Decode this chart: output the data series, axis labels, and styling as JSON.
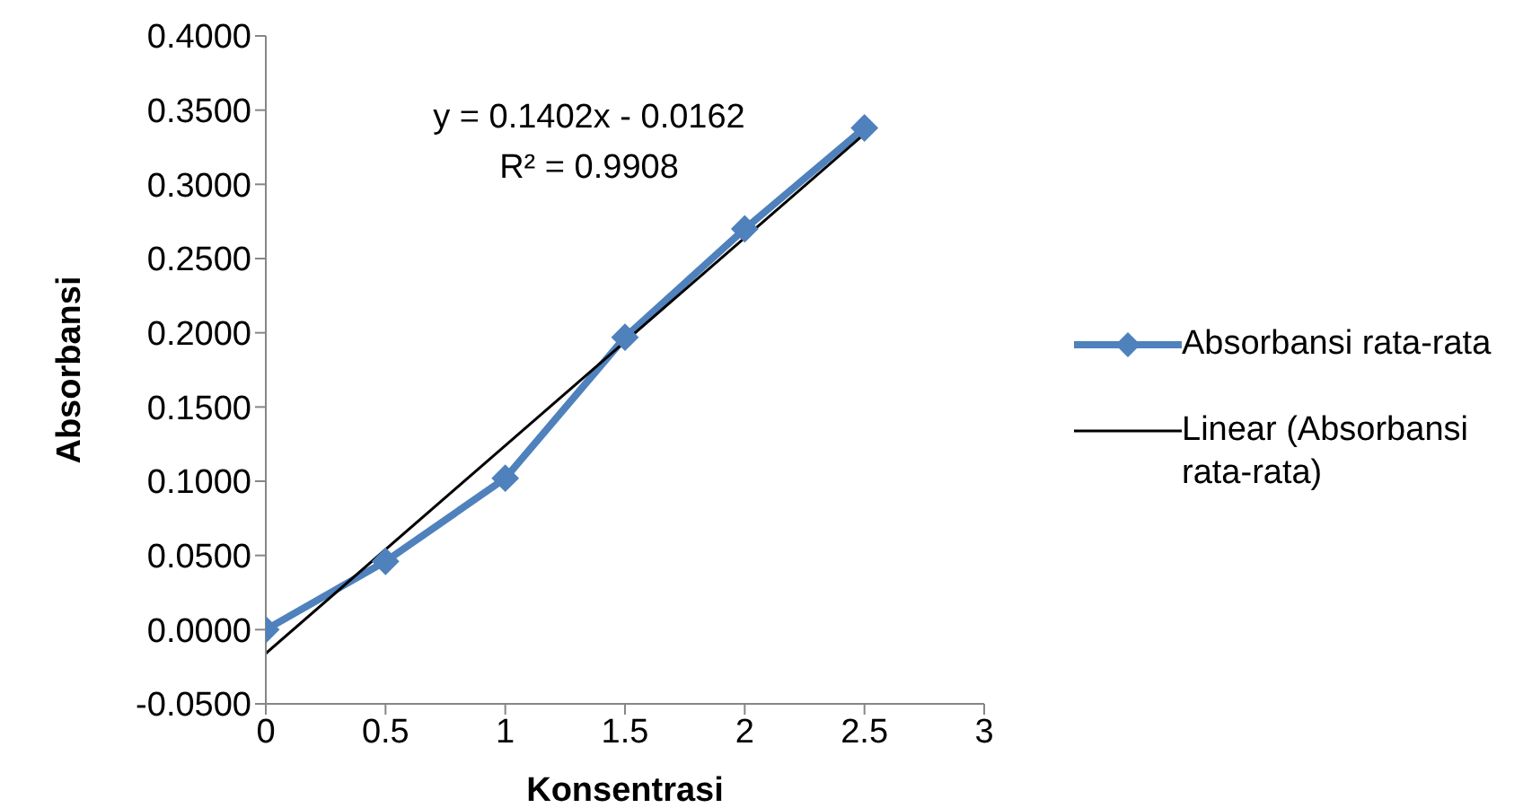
{
  "chart_data": {
    "type": "line",
    "xlabel": "Konsentrasi",
    "ylabel": "Absorbansi",
    "x": [
      0,
      0.5,
      1,
      1.5,
      2,
      2.5
    ],
    "series": [
      {
        "name": "Absorbansi rata-rata",
        "color": "#4f81bd",
        "values": [
          0.0,
          0.046,
          0.102,
          0.197,
          0.27,
          0.338
        ]
      },
      {
        "name": "Linear (Absorbansi rata-rata)",
        "color": "#000000",
        "x": [
          0,
          2.5
        ],
        "values": [
          -0.016,
          0.334
        ],
        "marker": "none"
      }
    ],
    "marker": "diamond",
    "line_style": "solid",
    "grid": false,
    "legend": "right",
    "xlim": [
      0,
      3
    ],
    "xticks": [
      0,
      0.5,
      1,
      1.5,
      2,
      2.5,
      3
    ],
    "ylim": [
      -0.05,
      0.4
    ],
    "yticks": [
      {
        "value": -0.05,
        "label": "-0.0500"
      },
      {
        "value": 0,
        "label": "0.0000"
      },
      {
        "value": 0.05,
        "label": "0.0500"
      },
      {
        "value": 0.1,
        "label": "0.1000"
      },
      {
        "value": 0.15,
        "label": "0.1500"
      },
      {
        "value": 0.2,
        "label": "0.2000"
      },
      {
        "value": 0.25,
        "label": "0.2500"
      },
      {
        "value": 0.3,
        "label": "0.3000"
      },
      {
        "value": 0.35,
        "label": "0.3500"
      },
      {
        "value": 0.4,
        "label": "0.4000"
      }
    ],
    "annotations": [
      "y = 0.1402x - 0.0162",
      "R² = 0.9908"
    ]
  }
}
